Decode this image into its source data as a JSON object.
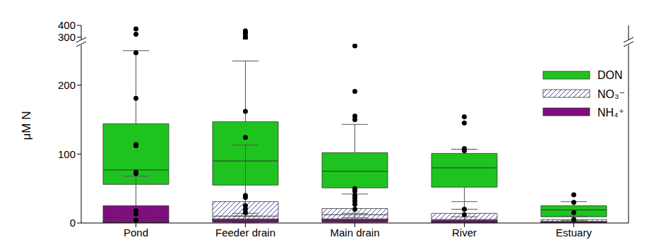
{
  "chart_data": {
    "type": "box",
    "ylabel": "μM N",
    "categories": [
      "Pond",
      "Feeder drain",
      "Main drain",
      "River",
      "Estuary"
    ],
    "ylim": [
      0,
      400
    ],
    "yticks": [
      0,
      100,
      200,
      300,
      400
    ],
    "y_break": [
      260,
      280
    ],
    "legend": "upper right",
    "series": [
      {
        "name": "DON",
        "color": "#1fc31f",
        "line_style": "solid",
        "boxes": [
          {
            "whisker_low": 25,
            "q1": 56,
            "median": 77,
            "q3": 144,
            "whisker_high": 250,
            "outliers": [
              370,
              325,
              247,
              181,
              114,
              112,
              74,
              72
            ]
          },
          {
            "whisker_low": 10,
            "q1": 55,
            "median": 90,
            "q3": 147,
            "whisker_high": 235,
            "outliers": [
              353,
              340,
              329,
              306,
              290,
              162,
              124
            ]
          },
          {
            "whisker_low": 8,
            "q1": 51,
            "median": 75,
            "q3": 102,
            "whisker_high": 143,
            "outliers": [
              257,
              191,
              155,
              150
            ]
          },
          {
            "whisker_low": 20,
            "q1": 52,
            "median": 80,
            "q3": 101,
            "whisker_high": 107,
            "outliers": [
              154,
              145,
              108,
              105
            ]
          },
          {
            "whisker_low": 2,
            "q1": 9,
            "median": 19,
            "q3": 25,
            "whisker_high": 31,
            "outliers": [
              41,
              30,
              15,
              5
            ]
          }
        ]
      },
      {
        "name": "NO₃⁻",
        "color": "#4646a0",
        "line_style": "hatched",
        "boxes": [
          {
            "whisker_low": 0,
            "q1": 0,
            "median": 1,
            "q3": 3,
            "whisker_high": 8,
            "outliers": [
              18,
              13
            ]
          },
          {
            "whisker_low": 0,
            "q1": 2,
            "median": 10,
            "q3": 31,
            "whisker_high": 113,
            "outliers": []
          },
          {
            "whisker_low": 0,
            "q1": 3,
            "median": 12,
            "q3": 21,
            "whisker_high": 42,
            "outliers": []
          },
          {
            "whisker_low": 0,
            "q1": 1,
            "median": 5,
            "q3": 14,
            "whisker_high": 31,
            "outliers": [
              20,
              12
            ]
          },
          {
            "whisker_low": 0,
            "q1": 0,
            "median": 2,
            "q3": 5,
            "whisker_high": 10,
            "outliers": []
          }
        ]
      },
      {
        "name": "NH₄⁺",
        "color": "#7f0f7f",
        "line_style": "solid",
        "boxes": [
          {
            "whisker_low": 0,
            "q1": 1,
            "median": 8,
            "q3": 25,
            "whisker_high": 68,
            "outliers": [
              4
            ]
          },
          {
            "whisker_low": 0,
            "q1": 1,
            "median": 3,
            "q3": 6,
            "whisker_high": 14,
            "outliers": [
              40,
              37,
              25,
              20,
              15
            ]
          },
          {
            "whisker_low": 0,
            "q1": 1,
            "median": 3,
            "q3": 6,
            "whisker_high": 14,
            "outliers": [
              50,
              46,
              40,
              36,
              32,
              27,
              20
            ]
          },
          {
            "whisker_low": 0,
            "q1": 0,
            "median": 2,
            "q3": 4,
            "whisker_high": 9,
            "outliers": []
          },
          {
            "whisker_low": 0,
            "q1": 0,
            "median": 1,
            "q3": 2,
            "whisker_high": 4,
            "outliers": []
          }
        ]
      }
    ]
  }
}
